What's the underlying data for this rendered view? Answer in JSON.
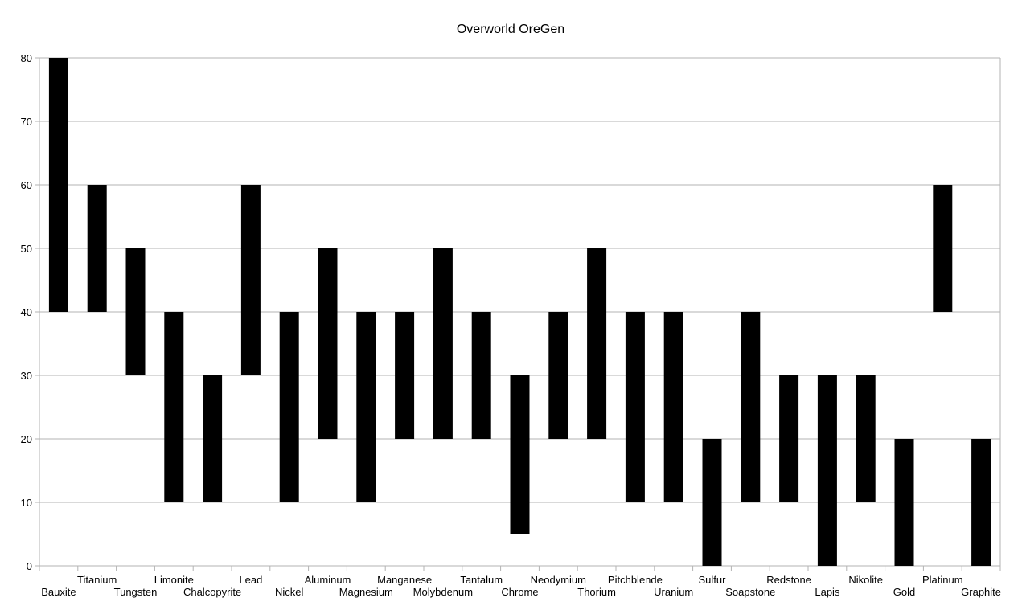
{
  "chart_data": {
    "type": "bar",
    "subtype": "floating-range",
    "title": "Overworld OreGen",
    "xlabel": "",
    "ylabel": "",
    "ylim": [
      0,
      80
    ],
    "y_ticks": [
      0,
      10,
      20,
      30,
      40,
      50,
      60,
      70,
      80
    ],
    "grid": true,
    "legend": "none",
    "bar_color": "#000000",
    "grid_color": "#b3b3b3",
    "categories": [
      "Bauxite",
      "Titanium",
      "Tungsten",
      "Limonite",
      "Chalcopyrite",
      "Lead",
      "Nickel",
      "Aluminum",
      "Magnesium",
      "Manganese",
      "Molybdenum",
      "Tantalum",
      "Chrome",
      "Neodymium",
      "Thorium",
      "Pitchblende",
      "Uranium",
      "Sulfur",
      "Soapstone",
      "Redstone",
      "Lapis",
      "Nikolite",
      "Gold",
      "Platinum",
      "Graphite"
    ],
    "low": [
      40,
      40,
      30,
      10,
      10,
      30,
      10,
      20,
      10,
      20,
      20,
      20,
      5,
      20,
      20,
      10,
      10,
      0,
      10,
      10,
      0,
      10,
      0,
      40,
      0
    ],
    "high": [
      80,
      60,
      50,
      40,
      30,
      60,
      40,
      50,
      40,
      40,
      50,
      40,
      30,
      40,
      50,
      40,
      40,
      20,
      40,
      30,
      30,
      30,
      20,
      60,
      20
    ]
  }
}
